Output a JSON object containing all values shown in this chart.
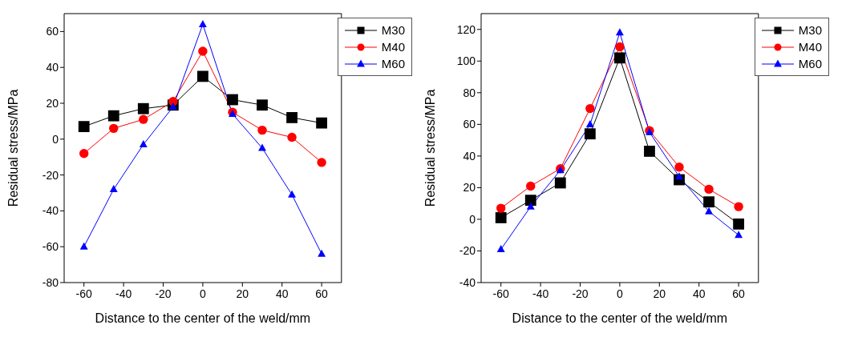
{
  "chart_data": [
    {
      "type": "line",
      "xlabel": "Distance to the center of the weld/mm",
      "ylabel": "Residual stress/MPa",
      "x": [
        -60,
        -45,
        -30,
        -15,
        0,
        15,
        30,
        45,
        60
      ],
      "xlim": [
        -70,
        70
      ],
      "xticks": [
        -60,
        -40,
        -20,
        0,
        20,
        40,
        60
      ],
      "ylim": [
        -80,
        70
      ],
      "yticks": [
        -80,
        -60,
        -40,
        -20,
        0,
        20,
        40,
        60
      ],
      "grid": false,
      "legend": "top right",
      "series": [
        {
          "name": "M30",
          "color": "#000000",
          "marker": "square",
          "values": [
            7,
            13,
            17,
            19,
            35,
            22,
            19,
            12,
            9
          ]
        },
        {
          "name": "M40",
          "color": "#ff0000",
          "marker": "circle",
          "values": [
            -8,
            6,
            11,
            21,
            49,
            15,
            5,
            1,
            -13
          ]
        },
        {
          "name": "M60",
          "color": "#0000ff",
          "marker": "triangle",
          "values": [
            -60,
            -28,
            -3,
            18,
            64,
            14,
            -5,
            -31,
            -64
          ]
        }
      ]
    },
    {
      "type": "line",
      "xlabel": "Distance to the center of the weld/mm",
      "ylabel": "Residual stress/MPa",
      "x": [
        -60,
        -45,
        -30,
        -15,
        0,
        15,
        30,
        45,
        60
      ],
      "xlim": [
        -70,
        70
      ],
      "xticks": [
        -60,
        -40,
        -20,
        0,
        20,
        40,
        60
      ],
      "ylim": [
        -40,
        130
      ],
      "yticks": [
        -40,
        -20,
        0,
        20,
        40,
        60,
        80,
        100,
        120
      ],
      "grid": false,
      "legend": "top right",
      "series": [
        {
          "name": "M30",
          "color": "#000000",
          "marker": "square",
          "values": [
            1,
            12,
            23,
            54,
            102,
            43,
            25,
            11,
            -3
          ]
        },
        {
          "name": "M40",
          "color": "#ff0000",
          "marker": "circle",
          "values": [
            7,
            21,
            32,
            70,
            109,
            56,
            33,
            19,
            8
          ]
        },
        {
          "name": "M60",
          "color": "#0000ff",
          "marker": "triangle",
          "values": [
            -19,
            8,
            31,
            60,
            118,
            55,
            27,
            5,
            -10
          ]
        }
      ]
    }
  ]
}
